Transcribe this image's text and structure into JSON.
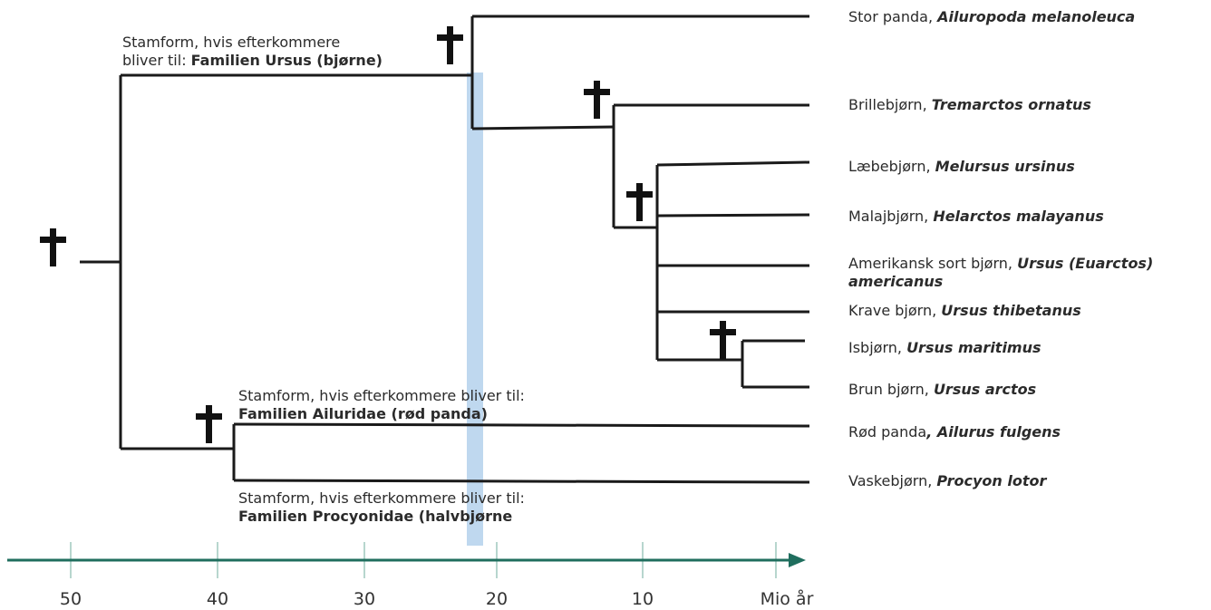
{
  "diagram": {
    "title": "",
    "species": [
      {
        "common": "Stor panda,",
        "latin": "Ailuropoda melanoleuca"
      },
      {
        "common": "Brillebjørn,",
        "latin": "Tremarctos ornatus"
      },
      {
        "common": "Læbebjørn,",
        "latin": "Melursus ursinus"
      },
      {
        "common": "Malajbjørn,",
        "latin": "Helarctos malayanus"
      },
      {
        "common": "Amerikansk sort bjørn,",
        "latin": "Ursus (Euarctos)",
        "latin2": "americanus"
      },
      {
        "common": "Krave bjørn,",
        "latin": "Ursus thibetanus"
      },
      {
        "common": "Isbjørn,",
        "latin": "Ursus maritimus"
      },
      {
        "common": "Brun bjørn,",
        "latin": "Ursus arctos"
      },
      {
        "common": "Rød panda",
        "latin": ", Ailurus fulgens"
      },
      {
        "common": "Vaskebjørn,",
        "latin": "Procyon lotor"
      }
    ],
    "ancestors": {
      "ursus": {
        "line1": "Stamform, hvis efterkommere",
        "line2": "bliver til:",
        "family": "Familien Ursus (bjørne)"
      },
      "ailuridae": {
        "line1": "Stamform, hvis efterkommere bliver til:",
        "family": "Familien Ailuridae (rød panda)"
      },
      "procyonidae": {
        "line1": "Stamform, hvis efterkommere bliver til:",
        "family": "Familien Procyonidae (halvbjørne"
      }
    },
    "extinct_marker": "†",
    "colors": {
      "line": "#1a1a1a",
      "axis": "#1f6e5e",
      "tick": "#9fc9bd",
      "highlight": "#a9cbe9"
    }
  },
  "axis": {
    "ticks": [
      "50",
      "40",
      "30",
      "20",
      "10"
    ],
    "unit": "Mio år"
  }
}
